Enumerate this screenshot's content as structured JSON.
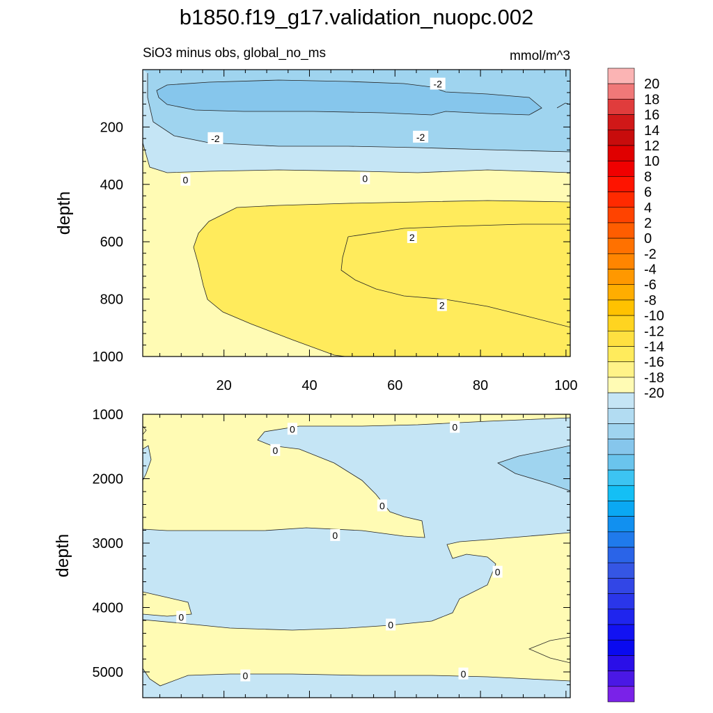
{
  "title": "b1850.f19_g17.validation_nuopc.002",
  "colors": {
    "pos_0_2": "#fffbb4",
    "pos_2_4": "#ffeb5c",
    "neg_0_m2": "#c5e5f5",
    "neg_m2_m4": "#9fd4ef",
    "neg_m4_m6": "#86c6ec"
  },
  "chart_data": [
    {
      "type": "contour",
      "name": "upper",
      "subtitle_left": "SiO3 minus obs, global_no_ms",
      "subtitle_right": "mmol/m^3",
      "ylabel": "depth",
      "xlabel": "",
      "xlim": [
        1,
        101
      ],
      "ylim": [
        1000,
        0
      ],
      "xticks": [
        20,
        40,
        60,
        80,
        100
      ],
      "xtick_labels": [
        "20",
        "40",
        "60",
        "80",
        "100"
      ],
      "yticks": [
        200,
        400,
        600,
        800,
        1000
      ],
      "ytick_labels": [
        "200",
        "400",
        "600",
        "800",
        "1000"
      ],
      "contour_labels": [
        {
          "text": "-2",
          "x": 70,
          "y": 50
        },
        {
          "text": "-2",
          "x": 18,
          "y": 240
        },
        {
          "text": "-2",
          "x": 66,
          "y": 235
        },
        {
          "text": "0",
          "x": 11,
          "y": 385
        },
        {
          "text": "0",
          "x": 53,
          "y": 380
        },
        {
          "text": "2",
          "x": 64,
          "y": 585
        },
        {
          "text": "2",
          "x": 71,
          "y": 822
        }
      ]
    },
    {
      "type": "contour",
      "name": "lower",
      "ylabel": "depth",
      "xlabel": "",
      "xlim": [
        1,
        101
      ],
      "ylim": [
        5400,
        1000
      ],
      "xticks": [
        20,
        40,
        60,
        80,
        100
      ],
      "yticks": [
        1000,
        2000,
        3000,
        4000,
        5000
      ],
      "ytick_labels": [
        "1000",
        "2000",
        "3000",
        "4000",
        "5000"
      ],
      "contour_labels": [
        {
          "text": "0",
          "x": 36,
          "y": 1230
        },
        {
          "text": "0",
          "x": 32,
          "y": 1560
        },
        {
          "text": "0",
          "x": 74,
          "y": 1200
        },
        {
          "text": "0",
          "x": 57,
          "y": 2420
        },
        {
          "text": "0",
          "x": 46,
          "y": 2880
        },
        {
          "text": "0",
          "x": 84,
          "y": 3450
        },
        {
          "text": "0",
          "x": 10,
          "y": 4150
        },
        {
          "text": "0",
          "x": 59,
          "y": 4270
        },
        {
          "text": "0",
          "x": 25,
          "y": 5060
        },
        {
          "text": "0",
          "x": 76,
          "y": 5030
        }
      ]
    }
  ],
  "colorbar": {
    "labels": [
      "20",
      "18",
      "16",
      "14",
      "12",
      "10",
      "8",
      "6",
      "4",
      "2",
      "0",
      "-2",
      "-4",
      "-6",
      "-8",
      "-10",
      "-12",
      "-14",
      "-16",
      "-18",
      "-20"
    ],
    "colors": [
      "#fbb4b4",
      "#f07878",
      "#e03c3c",
      "#d01818",
      "#c80c0c",
      "#e00000",
      "#f00000",
      "#fe1400",
      "#ff2a00",
      "#ff4300",
      "#ff5d00",
      "#ff7100",
      "#ff8500",
      "#ff9800",
      "#ffad00",
      "#ffc200",
      "#ffd420",
      "#ffe040",
      "#ffeb5c",
      "#fff388",
      "#fffbb4",
      "#c5e5f5",
      "#b2dcf2",
      "#9fd4ef",
      "#86c6ec",
      "#6ac4ed",
      "#3cc4f2",
      "#14bff5",
      "#0aa8f3",
      "#1190f0",
      "#1f7aec",
      "#2a64e8",
      "#3556e4",
      "#3246e6",
      "#2a36ea",
      "#1f25ee",
      "#1212f2",
      "#0a0aef",
      "#2a0fe8",
      "#4a18e5",
      "#7a22e8"
    ]
  }
}
